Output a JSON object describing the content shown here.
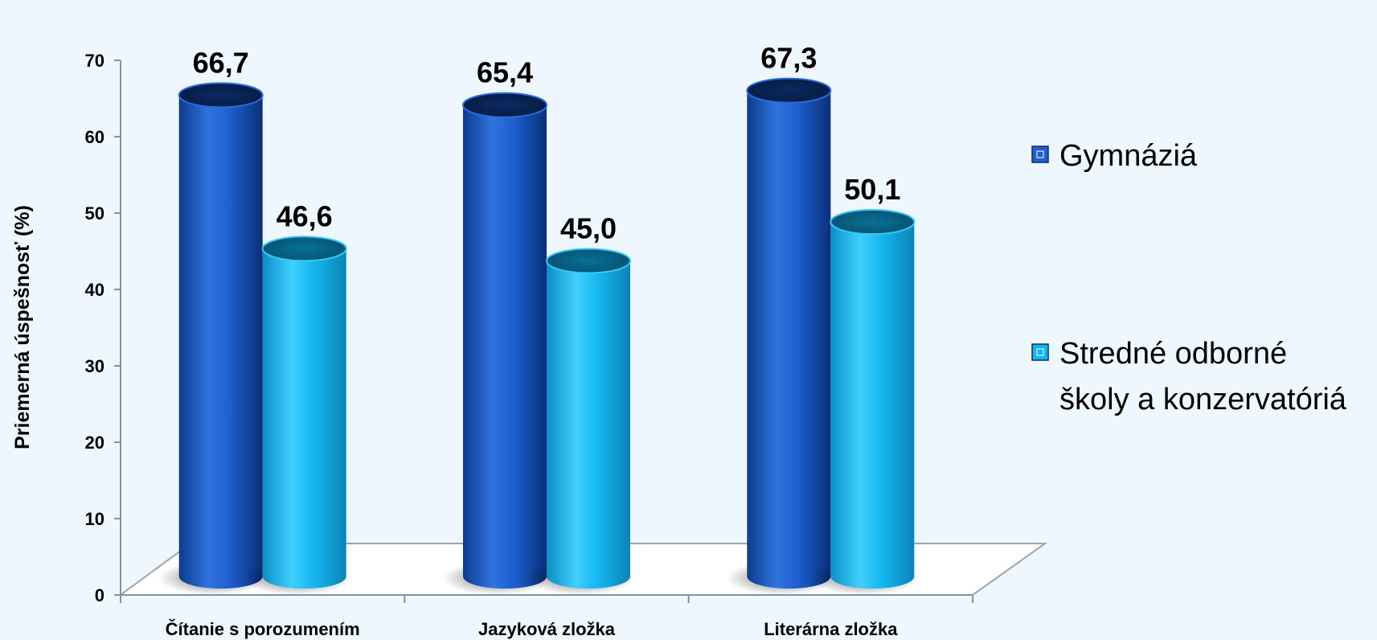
{
  "chart_data": {
    "type": "bar",
    "title": "",
    "xlabel": "",
    "ylabel": "Priemerná úspešnosť (%)",
    "ylim": [
      0,
      70
    ],
    "yticks": [
      0,
      10,
      20,
      30,
      40,
      50,
      60,
      70
    ],
    "categories": [
      "Čítanie s porozumením",
      "Jazyková zložka",
      "Literárna zložka"
    ],
    "series": [
      {
        "name": "Gymnáziá",
        "values": [
          66.7,
          65.4,
          67.3
        ],
        "labels": [
          "66,7",
          "65,4",
          "67,3"
        ],
        "color": "#1f5fcf"
      },
      {
        "name": "Stredné odborné školy a konzervatóriá",
        "values": [
          46.6,
          45.0,
          50.1
        ],
        "labels": [
          "46,6",
          "45,0",
          "50,1"
        ],
        "color": "#12b6ee"
      }
    ],
    "legend": {
      "position": "right",
      "lines": [
        [
          "Gymnáziá"
        ],
        [
          "Stredné odborné",
          "školy a konzervatóriá"
        ]
      ]
    },
    "grid": false
  }
}
